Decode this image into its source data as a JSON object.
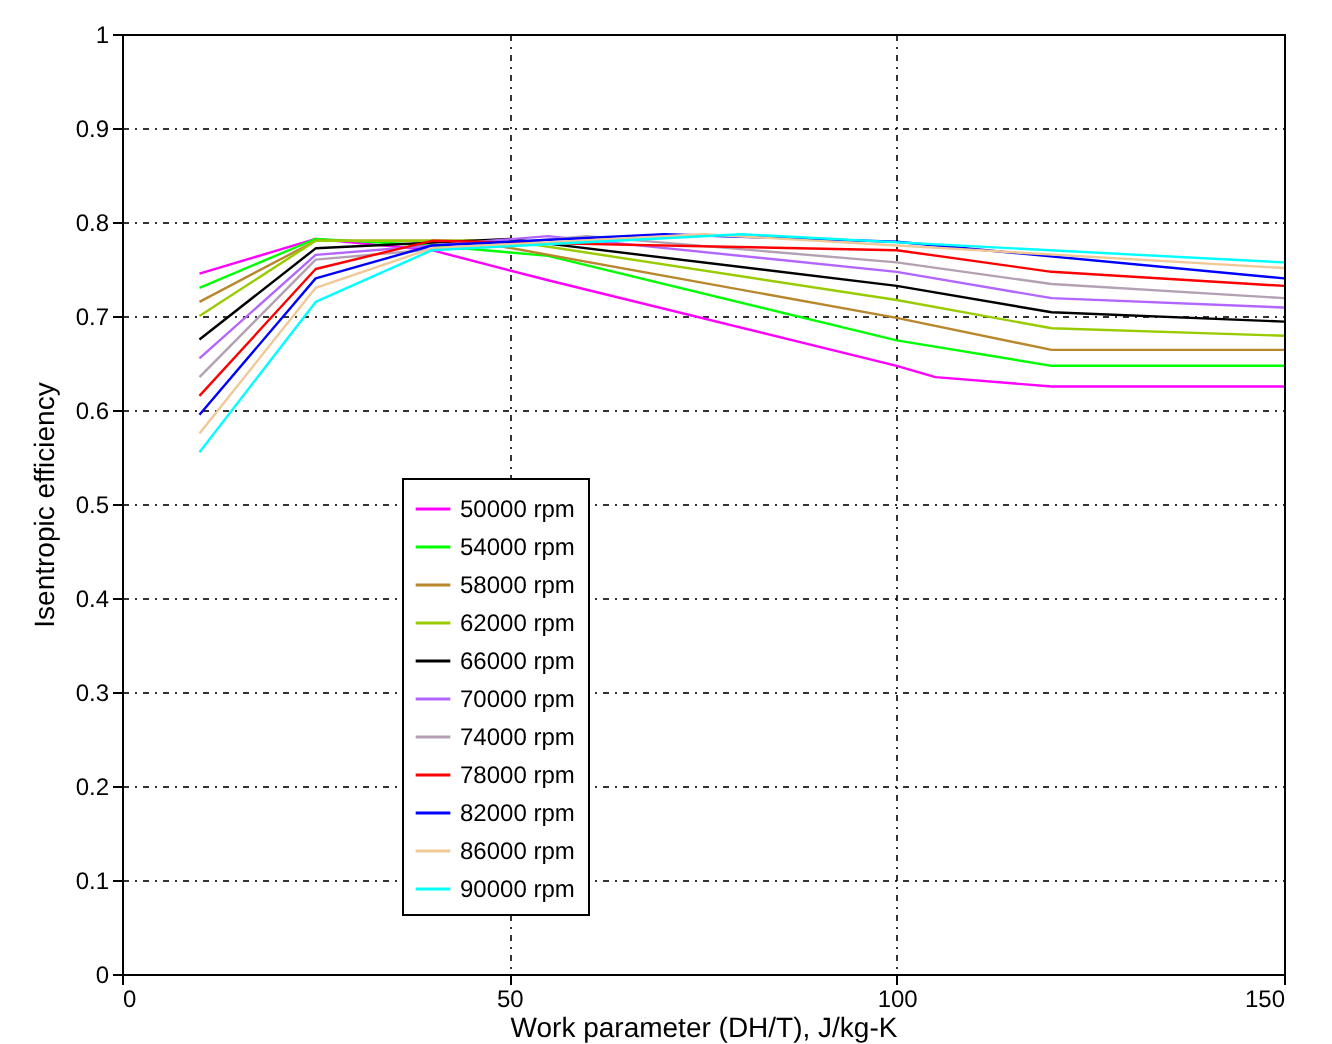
{
  "chart_data": {
    "type": "line",
    "xlabel": "Work parameter (DH/T), J/kg-K",
    "ylabel": "Isentropic efficiency",
    "xlim": [
      0,
      150
    ],
    "xticks": [
      0,
      50,
      100,
      150
    ],
    "ylim": [
      0,
      1
    ],
    "yticks": [
      0,
      0.1,
      0.2,
      0.3,
      0.4,
      0.5,
      0.6,
      0.7,
      0.8,
      0.9,
      1
    ],
    "grid": true,
    "legend": "left",
    "marker": "none",
    "line_style": "solid",
    "series": [
      {
        "name": "50000 rpm",
        "color": "#ff00ff",
        "x": [
          10,
          25,
          40,
          55,
          100,
          105,
          120,
          150
        ],
        "values": [
          0.745,
          0.782,
          0.77,
          0.738,
          0.647,
          0.635,
          0.625,
          0.625
        ]
      },
      {
        "name": "54000 rpm",
        "color": "#00ff00",
        "x": [
          10,
          25,
          40,
          55,
          100,
          120,
          150
        ],
        "values": [
          0.73,
          0.782,
          0.775,
          0.764,
          0.674,
          0.647,
          0.647
        ]
      },
      {
        "name": "58000 rpm",
        "color": "#b8862b",
        "x": [
          10,
          25,
          45,
          100,
          120,
          150
        ],
        "values": [
          0.715,
          0.78,
          0.78,
          0.698,
          0.664,
          0.664
        ]
      },
      {
        "name": "62000 rpm",
        "color": "#99cc00",
        "x": [
          10,
          25,
          50,
          100,
          120,
          150
        ],
        "values": [
          0.7,
          0.78,
          0.78,
          0.717,
          0.687,
          0.679
        ]
      },
      {
        "name": "66000 rpm",
        "color": "#000000",
        "x": [
          10,
          25,
          50,
          100,
          120,
          150
        ],
        "values": [
          0.675,
          0.772,
          0.782,
          0.732,
          0.704,
          0.694
        ]
      },
      {
        "name": "70000 rpm",
        "color": "#b266ff",
        "x": [
          10,
          25,
          55,
          100,
          120,
          150
        ],
        "values": [
          0.655,
          0.765,
          0.785,
          0.747,
          0.719,
          0.709
        ]
      },
      {
        "name": "74000 rpm",
        "color": "#b3a1b3",
        "x": [
          10,
          25,
          60,
          100,
          120,
          150
        ],
        "values": [
          0.635,
          0.76,
          0.785,
          0.757,
          0.734,
          0.719
        ]
      },
      {
        "name": "78000 rpm",
        "color": "#ff0000",
        "x": [
          10,
          25,
          40,
          100,
          120,
          150
        ],
        "values": [
          0.615,
          0.75,
          0.78,
          0.77,
          0.747,
          0.732
        ]
      },
      {
        "name": "82000 rpm",
        "color": "#0000ff",
        "x": [
          10,
          25,
          40,
          70,
          100,
          150
        ],
        "values": [
          0.595,
          0.74,
          0.775,
          0.787,
          0.779,
          0.74
        ]
      },
      {
        "name": "86000 rpm",
        "color": "#f0c896",
        "x": [
          10,
          25,
          40,
          75,
          150
        ],
        "values": [
          0.575,
          0.73,
          0.772,
          0.787,
          0.751
        ]
      },
      {
        "name": "90000 rpm",
        "color": "#00ffff",
        "x": [
          10,
          25,
          40,
          80,
          150
        ],
        "values": [
          0.555,
          0.715,
          0.77,
          0.787,
          0.757
        ]
      }
    ]
  }
}
